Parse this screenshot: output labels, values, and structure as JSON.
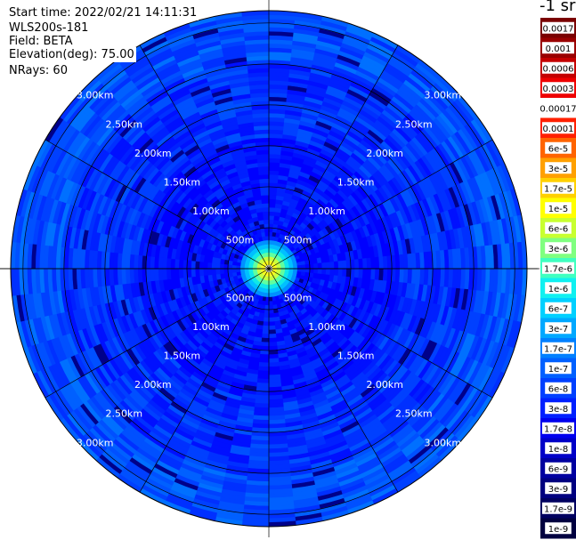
{
  "header": {
    "start_time": "Start time: 2022/02/21 14:11:31",
    "site": "WLS200s-181",
    "field": "Field: BETA",
    "elevation": "Elevation(deg): 75.00",
    "nrays": "NRays: 60"
  },
  "colorbar": {
    "title": "-1 sr",
    "labels": [
      "0.0017",
      "0.001",
      "0.0006",
      "0.0003",
      "0.00017",
      "0.0001",
      "6e-5",
      "3e-5",
      "1.7e-5",
      "1e-5",
      "6e-6",
      "3e-6",
      "1.7e-6",
      "1e-6",
      "6e-7",
      "3e-7",
      "1.7e-7",
      "1e-7",
      "6e-8",
      "3e-8",
      "1.7e-8",
      "1e-8",
      "6e-9",
      "3e-9",
      "1.7e-9",
      "1e-9"
    ],
    "colors": [
      "#7a0000",
      "#9a0000",
      "#c40000",
      "#ee0000",
      "#ffffff",
      "#ff2000",
      "#ff6400",
      "#ffa000",
      "#ffd000",
      "#ffff00",
      "#c8ff30",
      "#80ff80",
      "#40ffc0",
      "#10f0f0",
      "#00d0ff",
      "#00a8ff",
      "#0080ff",
      "#0060ff",
      "#0040ff",
      "#0020ff",
      "#0000ee",
      "#0000c8",
      "#0000a0",
      "#000080",
      "#000060",
      "#000040"
    ]
  },
  "chart_data": {
    "type": "heatmap",
    "projection": "polar (PPI)",
    "field": "BETA",
    "units": "1/(m sr)",
    "elevation_deg": 75.0,
    "nrays": 60,
    "range_rings": [
      {
        "label": "500m"
      },
      {
        "label": "1.00km"
      },
      {
        "label": "1.50km"
      },
      {
        "label": "2.00km"
      },
      {
        "label": "2.50km"
      },
      {
        "label": "3.00km"
      }
    ],
    "scale": "log",
    "value_range": [
      1e-09,
      0.0017
    ],
    "center_value_approx": 1.7e-05,
    "near_center_value_approx": 3e-07,
    "background_value_approx": 3e-08,
    "outer_value_approx": 1e-07
  }
}
